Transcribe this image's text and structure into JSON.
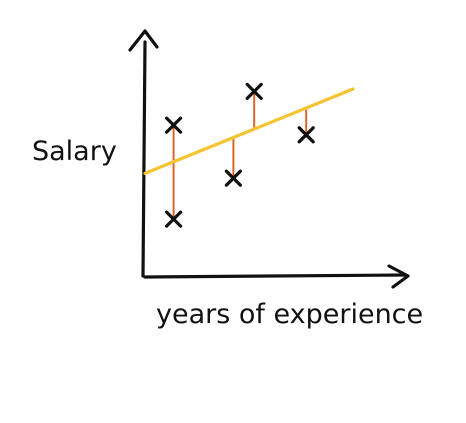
{
  "chart_data": {
    "type": "scatter",
    "title": "",
    "xlabel": "years of experience",
    "ylabel": "Salary",
    "grid": false,
    "legend": "none",
    "xlim": [
      0,
      10
    ],
    "ylim": [
      0,
      10
    ],
    "series": [
      {
        "points": [
          {
            "x": 1.1,
            "y": 6.3
          },
          {
            "x": 1.1,
            "y": 2.4
          },
          {
            "x": 3.4,
            "y": 4.1
          },
          {
            "x": 4.2,
            "y": 7.7
          },
          {
            "x": 6.2,
            "y": 5.9
          }
        ]
      }
    ],
    "regression_line": {
      "x": [
        0,
        8.0
      ],
      "y": [
        4.3,
        7.8
      ]
    },
    "residuals": true,
    "colors": {
      "axes": "#111111",
      "line": "#f5c431",
      "residual": "#d9672a",
      "marker": "#111111"
    }
  }
}
